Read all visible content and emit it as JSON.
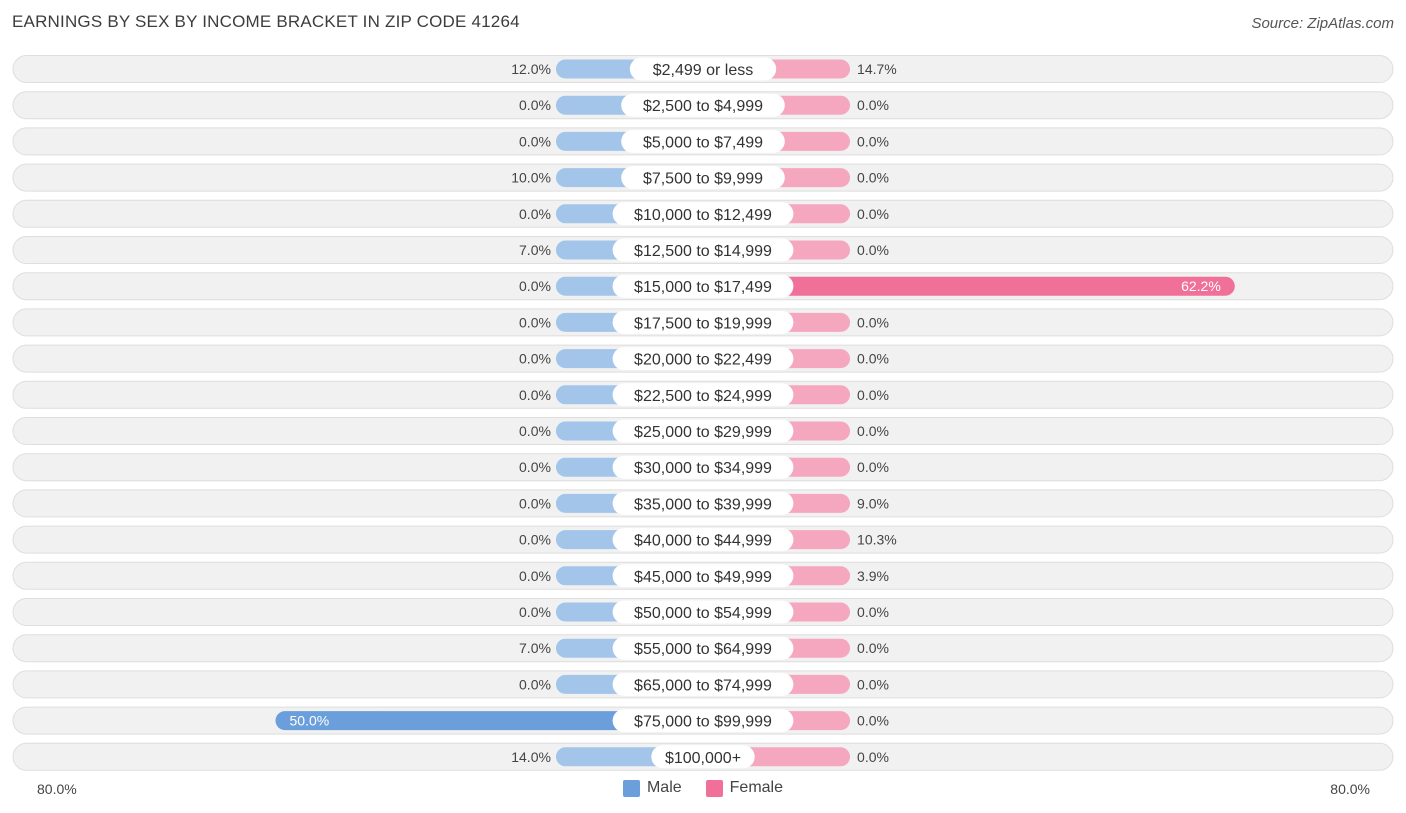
{
  "header": {
    "title": "EARNINGS BY SEX BY INCOME BRACKET IN ZIP CODE 41264",
    "source": "Source: ZipAtlas.com"
  },
  "legend": {
    "male_label": "Male",
    "female_label": "Female"
  },
  "axis": {
    "left_label": "80.0%",
    "right_label": "80.0%"
  },
  "colors": {
    "male": "#a4c5ea",
    "male_strong": "#6a9fdc",
    "female": "#f5a7c0",
    "female_strong": "#f0709a",
    "row_bg": "#f0f0f0",
    "row_border": "#e0e0e0"
  },
  "chart_data": {
    "type": "bar",
    "orientation": "horizontal-diverging",
    "title": "EARNINGS BY SEX BY INCOME BRACKET IN ZIP CODE 41264",
    "xlim": [
      -80,
      80
    ],
    "categories": [
      "$2,499 or less",
      "$2,500 to $4,999",
      "$5,000 to $7,499",
      "$7,500 to $9,999",
      "$10,000 to $12,499",
      "$12,500 to $14,999",
      "$15,000 to $17,499",
      "$17,500 to $19,999",
      "$20,000 to $22,499",
      "$22,500 to $24,999",
      "$25,000 to $29,999",
      "$30,000 to $34,999",
      "$35,000 to $39,999",
      "$40,000 to $44,999",
      "$45,000 to $49,999",
      "$50,000 to $54,999",
      "$55,000 to $64,999",
      "$65,000 to $74,999",
      "$75,000 to $99,999",
      "$100,000+"
    ],
    "series": [
      {
        "name": "Male",
        "values": [
          12.0,
          0.0,
          0.0,
          10.0,
          0.0,
          7.0,
          0.0,
          0.0,
          0.0,
          0.0,
          0.0,
          0.0,
          0.0,
          0.0,
          0.0,
          0.0,
          7.0,
          0.0,
          50.0,
          14.0
        ],
        "labels": [
          "12.0%",
          "0.0%",
          "0.0%",
          "10.0%",
          "0.0%",
          "7.0%",
          "0.0%",
          "0.0%",
          "0.0%",
          "0.0%",
          "0.0%",
          "0.0%",
          "0.0%",
          "0.0%",
          "0.0%",
          "0.0%",
          "7.0%",
          "0.0%",
          "50.0%",
          "14.0%"
        ]
      },
      {
        "name": "Female",
        "values": [
          14.7,
          0.0,
          0.0,
          0.0,
          0.0,
          0.0,
          62.2,
          0.0,
          0.0,
          0.0,
          0.0,
          0.0,
          9.0,
          10.3,
          3.9,
          0.0,
          0.0,
          0.0,
          0.0,
          0.0
        ],
        "labels": [
          "14.7%",
          "0.0%",
          "0.0%",
          "0.0%",
          "0.0%",
          "0.0%",
          "62.2%",
          "0.0%",
          "0.0%",
          "0.0%",
          "0.0%",
          "0.0%",
          "9.0%",
          "10.3%",
          "3.9%",
          "0.0%",
          "0.0%",
          "0.0%",
          "0.0%",
          "0.0%"
        ]
      }
    ]
  }
}
